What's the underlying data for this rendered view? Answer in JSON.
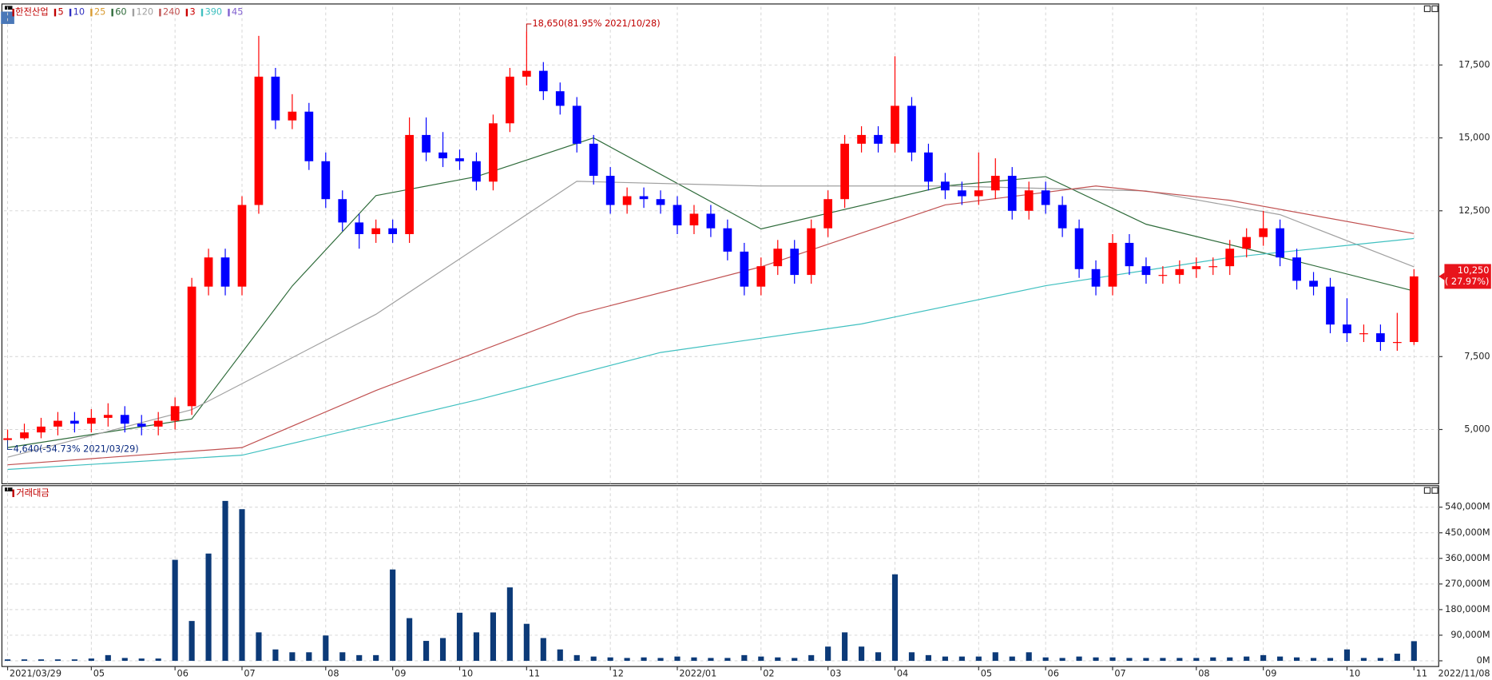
{
  "chart_data": [
    {
      "type": "candlestick",
      "title": "한전산업",
      "open": [
        4640,
        4700,
        4900,
        5100,
        5300,
        5200,
        5400,
        5500,
        5200,
        5100,
        5300,
        5800,
        9900,
        10900,
        9900,
        12700,
        17100,
        15600,
        15900,
        14200,
        12900,
        12100,
        11700,
        11900,
        11700,
        15100,
        14500,
        14300,
        14200,
        13500,
        15500,
        17100,
        17300,
        16600,
        16100,
        14800,
        13700,
        12700,
        13000,
        12900,
        12700,
        12000,
        12400,
        11900,
        11100,
        9900,
        10600,
        11200,
        10300,
        11900,
        12900,
        14800,
        15100,
        14800,
        16100,
        14500,
        13500,
        13200,
        13000,
        13200,
        13700,
        12500,
        13200,
        12700,
        11900,
        10500,
        9900,
        11400,
        10600,
        10300,
        10300,
        10500,
        10600,
        10600,
        11200,
        11600,
        11900,
        10900,
        10100,
        9900,
        8600,
        8300,
        8300,
        8000,
        8000
      ],
      "high": [
        5000,
        5200,
        5400,
        5600,
        5600,
        5700,
        5900,
        5800,
        5500,
        5600,
        6100,
        10200,
        11200,
        11200,
        13000,
        18500,
        17400,
        16500,
        16200,
        14500,
        13200,
        12400,
        12200,
        12200,
        15700,
        15700,
        15200,
        14600,
        14500,
        15800,
        17400,
        18650,
        17600,
        16900,
        16400,
        15100,
        14000,
        13300,
        13300,
        13200,
        13000,
        12700,
        12700,
        12200,
        11400,
        10900,
        11500,
        11500,
        12200,
        13200,
        15100,
        15400,
        15400,
        17800,
        16400,
        14800,
        13800,
        13500,
        14500,
        14300,
        14000,
        13500,
        13500,
        13000,
        12200,
        10800,
        11700,
        11700,
        10900,
        10600,
        10800,
        10900,
        10900,
        11500,
        11900,
        12500,
        12200,
        11200,
        10400,
        10200,
        9500,
        8600,
        8600,
        9000,
        10500
      ],
      "low": [
        4640,
        4650,
        4700,
        4800,
        4900,
        4900,
        5100,
        4900,
        4800,
        4800,
        5000,
        5500,
        9600,
        9600,
        9600,
        12400,
        15300,
        15300,
        13900,
        12600,
        11800,
        11200,
        11400,
        11400,
        11400,
        14200,
        14000,
        13900,
        13200,
        13200,
        15200,
        16800,
        16300,
        15800,
        14500,
        13400,
        12400,
        12400,
        12600,
        12400,
        11700,
        11700,
        11600,
        10800,
        9600,
        9600,
        10300,
        10000,
        10000,
        11600,
        12600,
        14500,
        14500,
        14500,
        14200,
        13200,
        12900,
        12700,
        12700,
        12900,
        12200,
        12200,
        12400,
        11600,
        10200,
        9600,
        9600,
        10300,
        10000,
        10000,
        10000,
        10200,
        10300,
        10300,
        10900,
        11300,
        10600,
        9800,
        9600,
        8300,
        8000,
        8000,
        7700,
        7700,
        7900
      ],
      "close": [
        4700,
        4900,
        5100,
        5300,
        5200,
        5400,
        5500,
        5200,
        5100,
        5300,
        5800,
        9900,
        10900,
        9900,
        12700,
        17100,
        15600,
        15900,
        14200,
        12900,
        12100,
        11700,
        11900,
        11700,
        15100,
        14500,
        14300,
        14200,
        13500,
        15500,
        17100,
        17300,
        16600,
        16100,
        14800,
        13700,
        12700,
        13000,
        12900,
        12700,
        12000,
        12400,
        11900,
        11100,
        9900,
        10600,
        11200,
        10300,
        11900,
        12900,
        14800,
        15100,
        14800,
        16100,
        14500,
        13500,
        13200,
        13000,
        13200,
        13700,
        12500,
        13200,
        12700,
        11900,
        10500,
        9900,
        11400,
        10600,
        10300,
        10300,
        10500,
        10600,
        10600,
        11200,
        11600,
        11900,
        10900,
        10100,
        9900,
        8600,
        8300,
        8300,
        8000,
        8000,
        10250
      ],
      "up_color": "#ff0000",
      "down_color": "#0000ff",
      "ma_series": [
        {
          "name": "5",
          "color": "#c00000"
        },
        {
          "name": "10",
          "color": "#3030c0"
        },
        {
          "name": "25",
          "color": "#d89a30"
        },
        {
          "name": "60",
          "color": "#2e6b3a",
          "x": [
            0,
            11,
            17,
            22,
            28,
            35,
            45,
            56,
            62,
            68,
            75,
            84
          ],
          "values": [
            4380,
            5360,
            9920,
            13020,
            13670,
            15000,
            11880,
            13350,
            13670,
            12040,
            11060,
            9750
          ]
        },
        {
          "name": "120",
          "color": "#a0a0a0",
          "x": [
            0,
            11,
            22,
            34,
            45,
            56,
            68,
            76,
            84
          ],
          "values": [
            4050,
            5680,
            8950,
            13510,
            13350,
            13350,
            13180,
            12370,
            10580
          ]
        },
        {
          "name": "240",
          "color": "#c05050",
          "x": [
            0,
            14,
            22,
            34,
            45,
            56,
            65,
            73,
            84
          ],
          "values": [
            3790,
            4380,
            6340,
            8950,
            10580,
            12700,
            13350,
            12860,
            11720
          ]
        },
        {
          "name": "3",
          "color": "#cc0000"
        },
        {
          "name": "390",
          "color": "#40c0c0",
          "x": [
            0,
            14,
            28,
            39,
            51,
            62,
            73,
            84
          ],
          "values": [
            3630,
            4120,
            6010,
            7640,
            8620,
            9930,
            10900,
            11550
          ]
        },
        {
          "name": "45",
          "color": "#8060d0"
        }
      ],
      "ylim": [
        3140,
        19560
      ],
      "yticks": [
        {
          "value": 5000,
          "label": "5,000"
        },
        {
          "value": 7500,
          "label": "7,500"
        },
        {
          "value": 12500,
          "label": "12,500"
        },
        {
          "value": 15000,
          "label": "15,000"
        },
        {
          "value": 17500,
          "label": "17,500"
        }
      ],
      "grid": true,
      "annotations": [
        {
          "label": "18,650(81.95% 2021/10/28)",
          "value": 18650,
          "x": 31,
          "color": "#c00000"
        },
        {
          "label": "4,640(-54.73% 2021/03/29)",
          "value": 4640,
          "x": 0,
          "color": "#0a2a80"
        }
      ],
      "last_label": {
        "value": 10250,
        "label": "10,250"
      },
      "last_change": "( 27.97%)"
    },
    {
      "type": "bar",
      "title": "거래대금",
      "color": "#0c3a78",
      "categories": [
        "2021/03/29",
        null,
        null,
        null,
        null,
        "05",
        null,
        null,
        null,
        null,
        "06",
        null,
        null,
        null,
        "07",
        null,
        null,
        null,
        null,
        "08",
        null,
        null,
        null,
        "09",
        null,
        null,
        null,
        "10",
        null,
        null,
        null,
        "11",
        null,
        null,
        null,
        null,
        "12",
        null,
        null,
        null,
        "2022/01",
        null,
        null,
        null,
        null,
        "02",
        null,
        null,
        null,
        "03",
        null,
        null,
        null,
        "04",
        null,
        null,
        null,
        null,
        "05",
        null,
        null,
        null,
        "06",
        null,
        null,
        null,
        "07",
        null,
        null,
        null,
        null,
        "08",
        null,
        null,
        null,
        "09",
        null,
        null,
        null,
        null,
        "10",
        null,
        null,
        null,
        "11"
      ],
      "values": [
        5000,
        5000,
        5000,
        5000,
        5000,
        8000,
        20000,
        10000,
        8000,
        8000,
        355000,
        140000,
        377000,
        562000,
        533000,
        100000,
        40000,
        30000,
        30000,
        89000,
        30000,
        20000,
        20000,
        321000,
        150000,
        70000,
        80000,
        169000,
        100000,
        170000,
        258000,
        130000,
        80000,
        40000,
        20000,
        15000,
        12000,
        10000,
        12000,
        10000,
        15000,
        12000,
        10000,
        10000,
        20000,
        15000,
        12000,
        10000,
        20000,
        50000,
        100000,
        50000,
        30000,
        304000,
        30000,
        20000,
        15000,
        15000,
        15000,
        30000,
        15000,
        30000,
        12000,
        10000,
        15000,
        12000,
        12000,
        10000,
        10000,
        10000,
        10000,
        10000,
        12000,
        12000,
        15000,
        20000,
        15000,
        12000,
        10000,
        10000,
        40000,
        10000,
        10000,
        25000,
        69000
      ],
      "ylim": [
        0,
        609000
      ],
      "yticks": [
        {
          "value": 0,
          "label": "0M"
        },
        {
          "value": 90000,
          "label": "90,000M"
        },
        {
          "value": 180000,
          "label": "180,000M"
        },
        {
          "value": 270000,
          "label": "270,000M"
        },
        {
          "value": 360000,
          "label": "360,000M"
        },
        {
          "value": 450000,
          "label": "450,000M"
        },
        {
          "value": 540000,
          "label": "540,000M"
        }
      ],
      "grid": true,
      "end_date": "2022/11/08"
    }
  ]
}
